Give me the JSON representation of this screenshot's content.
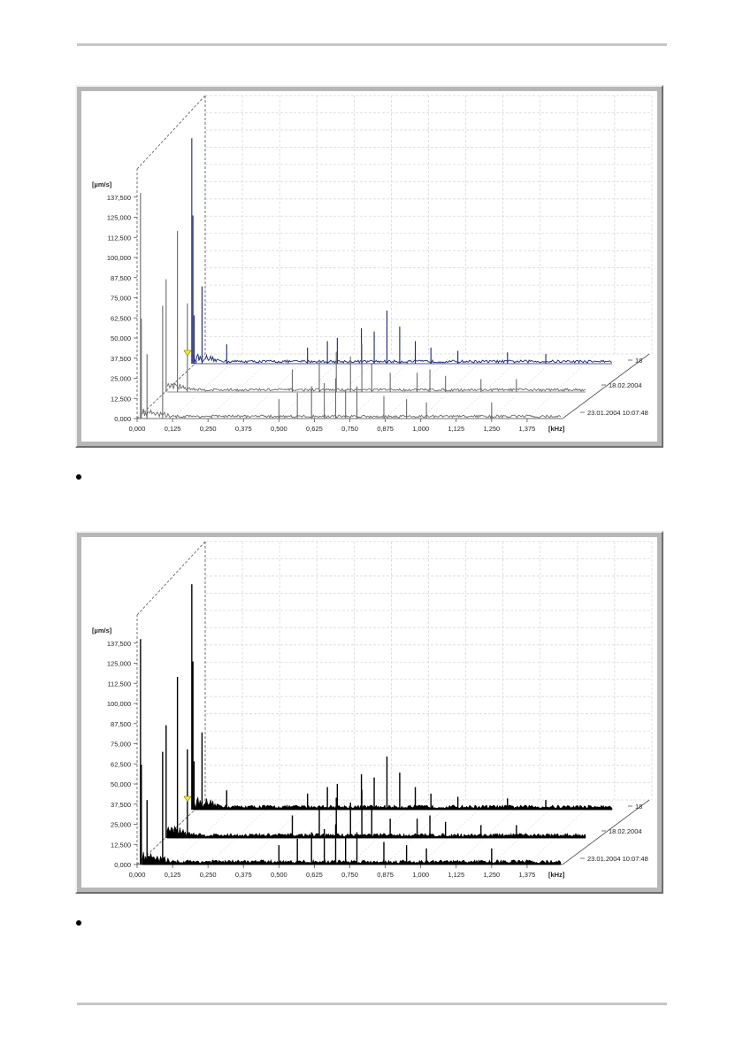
{
  "chart_data": [
    {
      "type": "line",
      "title": "",
      "subtitle": "",
      "xlabel": "[kHz]",
      "ylabel": "[µm/s]",
      "xlim": [
        0,
        1.5
      ],
      "ylim": [
        0,
        150
      ],
      "grid": true,
      "legend": "none",
      "x_ticks": [
        "0,000",
        "0,125",
        "0,250",
        "0,375",
        "0,500",
        "0,625",
        "0,750",
        "0,875",
        "1,000",
        "1,125",
        "1,250",
        "1,375"
      ],
      "y_ticks": [
        "0,000",
        "12,500",
        "25,000",
        "37,500",
        "50,000",
        "62,500",
        "75,000",
        "87,500",
        "100,000",
        "112,500",
        "125,000",
        "137,500"
      ],
      "x_tick_values": [
        0,
        0.125,
        0.25,
        0.375,
        0.5,
        0.625,
        0.75,
        0.875,
        1.0,
        1.125,
        1.25,
        1.375
      ],
      "y_tick_values": [
        0,
        12.5,
        25,
        37.5,
        50,
        62.5,
        75,
        87.5,
        100,
        112.5,
        125,
        137.5
      ],
      "depth_labels": [
        "23.01.2004 10:07:48",
        "18.02.2004",
        "18"
      ],
      "colors": {
        "front": "#6a6a6a",
        "middle": "#6a6a6a",
        "back": "#1a237e",
        "marker": "#ffee00"
      },
      "series": [
        {
          "values": [
            {
              "x": 0.012,
              "y": 140
            },
            {
              "x": 0.015,
              "y": 62
            },
            {
              "x": 0.035,
              "y": 40
            },
            {
              "x": 0.09,
              "y": 70
            },
            {
              "x": 0.5,
              "y": 12
            },
            {
              "x": 0.565,
              "y": 16
            },
            {
              "x": 0.615,
              "y": 20
            },
            {
              "x": 0.66,
              "y": 22
            },
            {
              "x": 0.7,
              "y": 25
            },
            {
              "x": 0.735,
              "y": 18
            },
            {
              "x": 0.775,
              "y": 20
            },
            {
              "x": 0.87,
              "y": 14
            },
            {
              "x": 0.95,
              "y": 12
            },
            {
              "x": 1.02,
              "y": 10
            },
            {
              "x": 1.25,
              "y": 10
            }
          ]
        },
        {
          "values": [
            {
              "x": 0.015,
              "y": 70
            },
            {
              "x": 0.055,
              "y": 100
            },
            {
              "x": 0.09,
              "y": 55
            },
            {
              "x": 0.46,
              "y": 14
            },
            {
              "x": 0.555,
              "y": 20
            },
            {
              "x": 0.615,
              "y": 25
            },
            {
              "x": 0.665,
              "y": 22
            },
            {
              "x": 0.705,
              "y": 30
            },
            {
              "x": 0.74,
              "y": 18
            },
            {
              "x": 0.805,
              "y": 12
            },
            {
              "x": 0.9,
              "y": 12
            },
            {
              "x": 0.945,
              "y": 14
            },
            {
              "x": 1.0,
              "y": 10
            },
            {
              "x": 1.125,
              "y": 8
            },
            {
              "x": 1.25,
              "y": 8
            }
          ]
        },
        {
          "values": [
            {
              "x": 0.012,
              "y": 140
            },
            {
              "x": 0.016,
              "y": 92
            },
            {
              "x": 0.02,
              "y": 30
            },
            {
              "x": 0.048,
              "y": 48
            },
            {
              "x": 0.135,
              "y": 12
            },
            {
              "x": 0.42,
              "y": 10
            },
            {
              "x": 0.49,
              "y": 14
            },
            {
              "x": 0.525,
              "y": 16
            },
            {
              "x": 0.61,
              "y": 22
            },
            {
              "x": 0.655,
              "y": 20
            },
            {
              "x": 0.7,
              "y": 33
            },
            {
              "x": 0.745,
              "y": 23
            },
            {
              "x": 0.8,
              "y": 14
            },
            {
              "x": 0.855,
              "y": 10
            },
            {
              "x": 0.95,
              "y": 8
            },
            {
              "x": 1.125,
              "y": 7
            },
            {
              "x": 1.26,
              "y": 6
            }
          ]
        }
      ]
    },
    {
      "type": "area",
      "title": "",
      "subtitle": "",
      "xlabel": "[kHz]",
      "ylabel": "[µm/s]",
      "xlim": [
        0,
        1.5
      ],
      "ylim": [
        0,
        150
      ],
      "grid": true,
      "legend": "none",
      "x_ticks": [
        "0,000",
        "0,125",
        "0,250",
        "0,375",
        "0,500",
        "0,625",
        "0,750",
        "0,875",
        "1,000",
        "1,125",
        "1,250",
        "1,375"
      ],
      "y_ticks": [
        "0,000",
        "12,500",
        "25,000",
        "37,500",
        "50,000",
        "62,500",
        "75,000",
        "87,500",
        "100,000",
        "112,500",
        "125,000",
        "137,500"
      ],
      "x_tick_values": [
        0,
        0.125,
        0.25,
        0.375,
        0.5,
        0.625,
        0.75,
        0.875,
        1.0,
        1.125,
        1.25,
        1.375
      ],
      "y_tick_values": [
        0,
        12.5,
        25,
        37.5,
        50,
        62.5,
        75,
        87.5,
        100,
        112.5,
        125,
        137.5
      ],
      "depth_labels": [
        "23.01.2004 10:07:48",
        "18.02.2004",
        "18"
      ],
      "colors": {
        "front": "#000000",
        "middle": "#000000",
        "back": "#000000",
        "marker": "#ffee00"
      },
      "series": [
        {
          "values": [
            {
              "x": 0.012,
              "y": 140
            },
            {
              "x": 0.015,
              "y": 62
            },
            {
              "x": 0.035,
              "y": 40
            },
            {
              "x": 0.09,
              "y": 70
            },
            {
              "x": 0.5,
              "y": 12
            },
            {
              "x": 0.565,
              "y": 16
            },
            {
              "x": 0.615,
              "y": 20
            },
            {
              "x": 0.66,
              "y": 22
            },
            {
              "x": 0.7,
              "y": 25
            },
            {
              "x": 0.735,
              "y": 18
            },
            {
              "x": 0.775,
              "y": 20
            },
            {
              "x": 0.87,
              "y": 14
            },
            {
              "x": 0.95,
              "y": 12
            },
            {
              "x": 1.02,
              "y": 10
            },
            {
              "x": 1.25,
              "y": 10
            }
          ]
        },
        {
          "values": [
            {
              "x": 0.015,
              "y": 70
            },
            {
              "x": 0.055,
              "y": 100
            },
            {
              "x": 0.09,
              "y": 55
            },
            {
              "x": 0.46,
              "y": 14
            },
            {
              "x": 0.555,
              "y": 20
            },
            {
              "x": 0.615,
              "y": 25
            },
            {
              "x": 0.665,
              "y": 22
            },
            {
              "x": 0.705,
              "y": 30
            },
            {
              "x": 0.74,
              "y": 18
            },
            {
              "x": 0.805,
              "y": 12
            },
            {
              "x": 0.9,
              "y": 12
            },
            {
              "x": 0.945,
              "y": 14
            },
            {
              "x": 1.0,
              "y": 10
            },
            {
              "x": 1.125,
              "y": 8
            },
            {
              "x": 1.25,
              "y": 8
            }
          ]
        },
        {
          "values": [
            {
              "x": 0.012,
              "y": 140
            },
            {
              "x": 0.016,
              "y": 92
            },
            {
              "x": 0.02,
              "y": 30
            },
            {
              "x": 0.048,
              "y": 48
            },
            {
              "x": 0.135,
              "y": 12
            },
            {
              "x": 0.42,
              "y": 10
            },
            {
              "x": 0.49,
              "y": 14
            },
            {
              "x": 0.525,
              "y": 16
            },
            {
              "x": 0.61,
              "y": 22
            },
            {
              "x": 0.655,
              "y": 20
            },
            {
              "x": 0.7,
              "y": 33
            },
            {
              "x": 0.745,
              "y": 23
            },
            {
              "x": 0.8,
              "y": 14
            },
            {
              "x": 0.855,
              "y": 10
            },
            {
              "x": 0.95,
              "y": 8
            },
            {
              "x": 1.125,
              "y": 7
            },
            {
              "x": 1.26,
              "y": 6
            }
          ]
        }
      ]
    }
  ]
}
